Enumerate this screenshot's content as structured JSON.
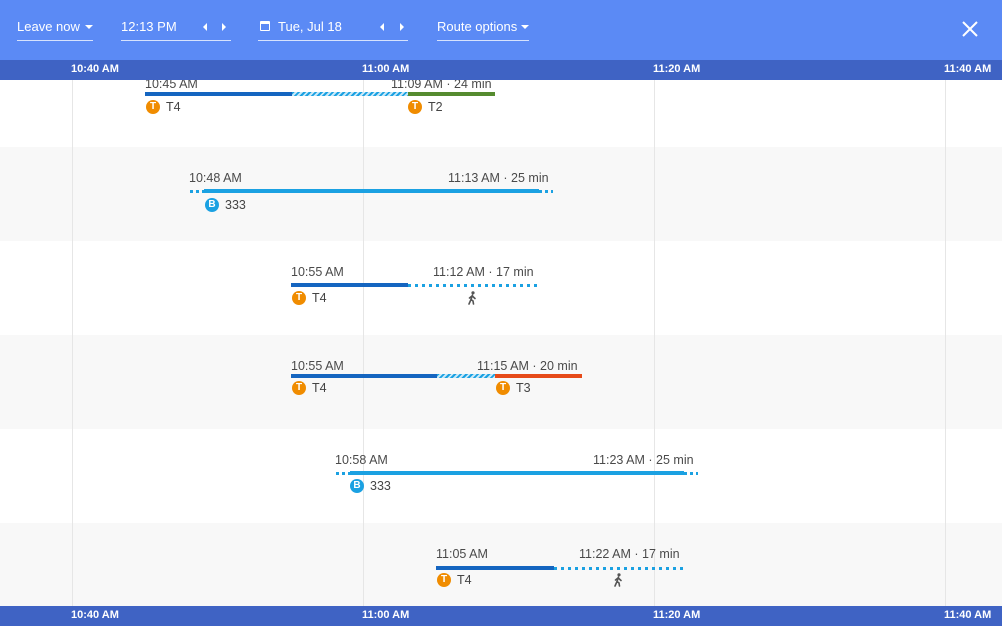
{
  "toolbar": {
    "leave_label": "Leave now",
    "time_value": "12:13 PM",
    "date_value": "Tue, Jul 18",
    "route_options_label": "Route options"
  },
  "axis": {
    "ticks": [
      "10:40 AM",
      "11:00 AM",
      "11:20 AM",
      "11:40 AM"
    ]
  },
  "colors": {
    "topbar": "#5b8af5",
    "axis": "#3f63c4",
    "tram_badge": "#f08c00",
    "bus_badge": "#1ba1e2",
    "line_t4": "#1565c0",
    "line_t2": "#558b2f",
    "line_t3": "#e64a19",
    "line_333": "#1ba1e2"
  },
  "routes": [
    {
      "depart": "10:45 AM",
      "arrive": "11:09 AM",
      "duration": "24 min",
      "legs": [
        "T4",
        "T2"
      ]
    },
    {
      "depart": "10:48 AM",
      "arrive": "11:13 AM",
      "duration": "25 min",
      "legs": [
        "333"
      ]
    },
    {
      "depart": "10:55 AM",
      "arrive": "11:12 AM",
      "duration": "17 min",
      "legs": [
        "T4",
        "walk"
      ]
    },
    {
      "depart": "10:55 AM",
      "arrive": "11:15 AM",
      "duration": "20 min",
      "legs": [
        "T4",
        "T3"
      ]
    },
    {
      "depart": "10:58 AM",
      "arrive": "11:23 AM",
      "duration": "25 min",
      "legs": [
        "333"
      ]
    },
    {
      "depart": "11:05 AM",
      "arrive": "11:22 AM",
      "duration": "17 min",
      "legs": [
        "T4",
        "walk"
      ]
    }
  ],
  "icons": {
    "tram": "T",
    "bus": "B",
    "separator": "·"
  }
}
